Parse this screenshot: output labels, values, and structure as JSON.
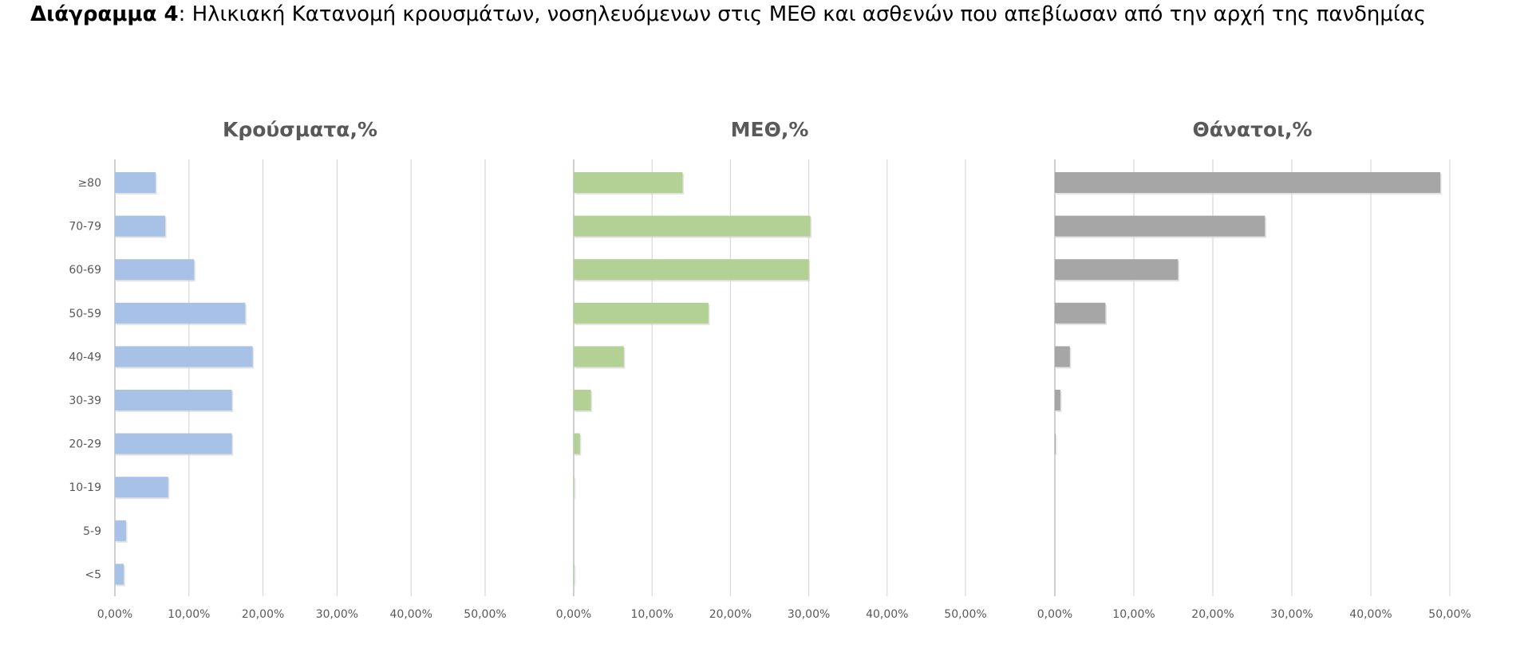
{
  "figure": {
    "label": "Διάγραμμα 4",
    "caption": ": Ηλικιακή Κατανομή κρουσμάτων, νοσηλευόμενων στις ΜΕΘ και ασθενών που απεβίωσαν από την αρχή της πανδημίας"
  },
  "colors": {
    "cases": "#a7c2e6",
    "icu": "#b3d195",
    "deaths": "#a6a6a6",
    "gridline": "#d9d9d9",
    "axis": "#bfbfbf",
    "text": "#595959"
  },
  "chart_data": [
    {
      "type": "bar",
      "orientation": "horizontal",
      "title": "Κρούσματα,%",
      "categories": [
        "≥80",
        "70-79",
        "60-69",
        "50-59",
        "40-49",
        "30-39",
        "20-29",
        "10-19",
        "5-9",
        "<5"
      ],
      "values": [
        5.5,
        6.8,
        10.7,
        17.6,
        18.6,
        15.8,
        15.8,
        7.2,
        1.5,
        1.2
      ],
      "xlim": [
        0,
        50
      ],
      "xticks": [
        "0,00%",
        "10,00%",
        "20,00%",
        "30,00%",
        "40,00%",
        "50,00%"
      ],
      "grid": true,
      "legend": "none"
    },
    {
      "type": "bar",
      "orientation": "horizontal",
      "title": "ΜΕΘ,%",
      "categories": [
        "≥80",
        "70-79",
        "60-69",
        "50-59",
        "40-49",
        "30-39",
        "20-29",
        "10-19",
        "5-9",
        "<5"
      ],
      "values": [
        13.9,
        30.2,
        30.0,
        17.2,
        6.4,
        2.2,
        0.8,
        0.1,
        0.0,
        0.1
      ],
      "xlim": [
        0,
        50
      ],
      "xticks": [
        "0,00%",
        "10,00%",
        "20,00%",
        "30,00%",
        "40,00%",
        "50,00%"
      ],
      "grid": true,
      "legend": "none"
    },
    {
      "type": "bar",
      "orientation": "horizontal",
      "title": "Θάνατοι,%",
      "categories": [
        "≥80",
        "70-79",
        "60-69",
        "50-59",
        "40-49",
        "30-39",
        "20-29",
        "10-19",
        "5-9",
        "<5"
      ],
      "values": [
        48.8,
        26.6,
        15.6,
        6.4,
        1.9,
        0.7,
        0.1,
        0.0,
        0.0,
        0.0
      ],
      "xlim": [
        0,
        50
      ],
      "xticks": [
        "0,00%",
        "10,00%",
        "20,00%",
        "30,00%",
        "40,00%",
        "50,00%"
      ],
      "grid": true,
      "legend": "none"
    }
  ]
}
